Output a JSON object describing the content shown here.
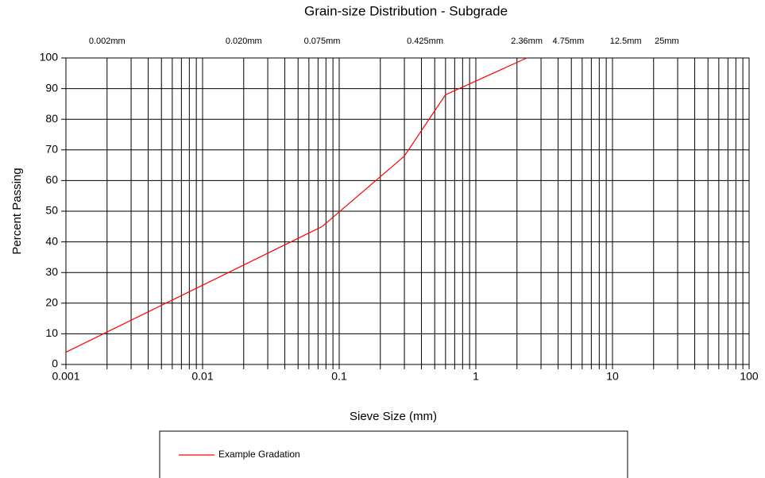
{
  "chart_data": {
    "type": "line",
    "title": "Grain-size Distribution - Subgrade",
    "xlabel": "Sieve Size (mm)",
    "ylabel": "Percent Passing",
    "xscale": "log",
    "grid": true,
    "xlim": [
      0.001,
      100
    ],
    "xticks": [
      0.001,
      0.01,
      0.1,
      1,
      10,
      100
    ],
    "xminorticks": [
      0.002,
      0.003,
      0.004,
      0.005,
      0.006,
      0.007,
      0.008,
      0.009,
      0.02,
      0.03,
      0.04,
      0.05,
      0.06,
      0.07,
      0.08,
      0.09,
      0.2,
      0.3,
      0.4,
      0.5,
      0.6,
      0.7,
      0.8,
      0.9,
      2,
      3,
      4,
      5,
      6,
      7,
      8,
      9,
      20,
      30,
      40,
      50,
      60,
      70,
      80,
      90
    ],
    "ylim": [
      0,
      100
    ],
    "yticks": [
      0,
      10,
      20,
      30,
      40,
      50,
      60,
      70,
      80,
      90,
      100
    ],
    "annotations": [
      {
        "x": 0.002,
        "label": "0.002mm"
      },
      {
        "x": 0.02,
        "label": "0.020mm"
      },
      {
        "x": 0.075,
        "label": "0.075mm"
      },
      {
        "x": 0.425,
        "label": "0.425mm"
      },
      {
        "x": 2.36,
        "label": "2.36mm"
      },
      {
        "x": 4.75,
        "label": "4.75mm"
      },
      {
        "x": 12.5,
        "label": "12.5mm"
      },
      {
        "x": 25,
        "label": "25mm"
      }
    ],
    "series": [
      {
        "name": "Example Gradation",
        "color": "#ff0000",
        "x": [
          0.001,
          0.075,
          0.3,
          0.6,
          2.36
        ],
        "values": [
          4,
          45,
          68,
          88,
          100
        ]
      }
    ]
  }
}
